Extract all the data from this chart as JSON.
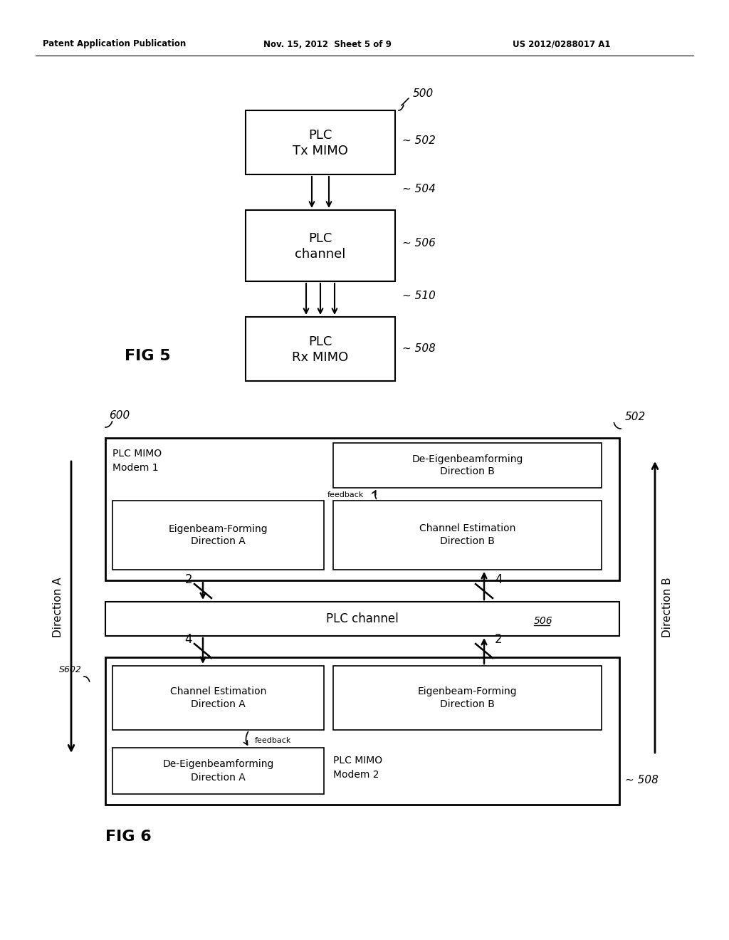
{
  "bg_color": "#ffffff",
  "header_left": "Patent Application Publication",
  "header_mid": "Nov. 15, 2012  Sheet 5 of 9",
  "header_right": "US 2012/0288017 A1",
  "fig5_label": "FIG 5",
  "fig6_label": "FIG 6",
  "fig5_box1_l1": "PLC",
  "fig5_box1_l2": "Tx MIMO",
  "fig5_box2_l1": "PLC",
  "fig5_box2_l2": "channel",
  "fig5_box3_l1": "PLC",
  "fig5_box3_l2": "Rx MIMO",
  "fig5_r500": "500",
  "fig5_r502": "~ 502",
  "fig5_r504": "~ 504",
  "fig5_r506": "~ 506",
  "fig5_r508": "~ 508",
  "fig5_r510": "~ 510",
  "fig6_r600": "600",
  "fig6_r502": "502",
  "fig6_r506": "506",
  "fig6_r508": "~ 508",
  "fig6_rS602": "S602",
  "fig6_dir_a": "Direction A",
  "fig6_dir_b": "Direction B",
  "fig6_modem1_l1": "PLC MIMO",
  "fig6_modem1_l2": "Modem 1",
  "fig6_modem2_l1": "PLC MIMO",
  "fig6_modem2_l2": "Modem 2",
  "fig6_channel": "PLC channel",
  "fig6_de_eig_b_l1": "De-Eigenbeamforming",
  "fig6_de_eig_b_l2": "Direction B",
  "fig6_eig_a_l1": "Eigenbeam-Forming",
  "fig6_eig_a_l2": "Direction A",
  "fig6_ch_est_b_l1": "Channel Estimation",
  "fig6_ch_est_b_l2": "Direction B",
  "fig6_ch_est_a_l1": "Channel Estimation",
  "fig6_ch_est_a_l2": "Direction A",
  "fig6_eig_b_l1": "Eigenbeam-Forming",
  "fig6_eig_b_l2": "Direction B",
  "fig6_de_eig_a_l1": "De-Eigenbeamforming",
  "fig6_de_eig_a_l2": "Direction A",
  "fig6_feedback": "feedback",
  "fig6_n2a": "2",
  "fig6_n4a": "4",
  "fig6_n4b": "4",
  "fig6_n2b": "2"
}
